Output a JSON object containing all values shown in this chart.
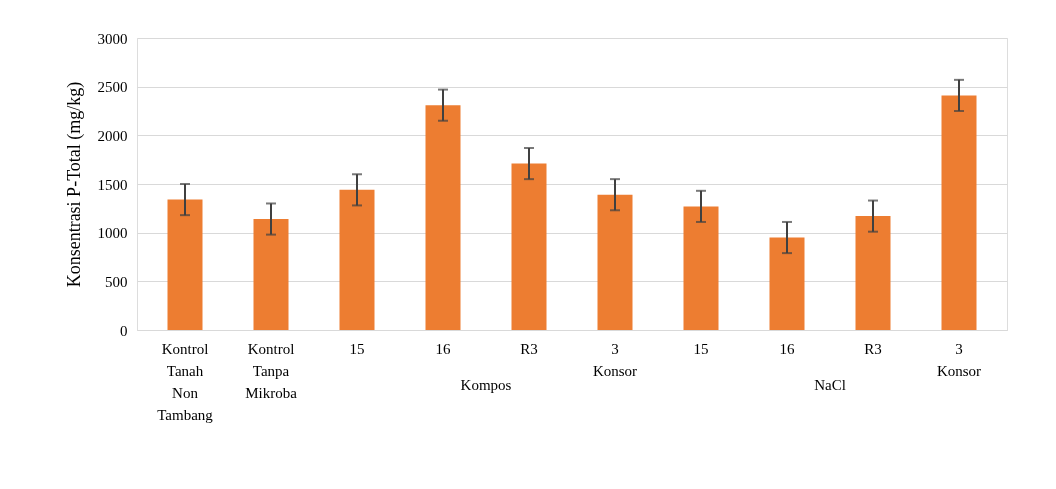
{
  "chart_data": {
    "type": "bar",
    "ylabel": "Konsentrasi P-Total (mg/kg)",
    "categories": [
      "Kontrol Tanah Non Tambang",
      "Kontrol Tanpa Mikroba",
      "15",
      "16",
      "R3",
      "3 Konsor",
      "15",
      "16",
      "R3",
      "3 Konsor"
    ],
    "values": [
      1340,
      1140,
      1440,
      2310,
      1710,
      1390,
      1270,
      950,
      1170,
      2410
    ],
    "errors": [
      160,
      160,
      160,
      160,
      160,
      160,
      160,
      160,
      160,
      160
    ],
    "color": "#ed7d31",
    "ylim": [
      0,
      3000
    ],
    "yticks": [
      0,
      500,
      1000,
      1500,
      2000,
      2500,
      3000
    ],
    "grid": "y",
    "annotations": [
      "Kompos",
      "NaCl"
    ]
  }
}
